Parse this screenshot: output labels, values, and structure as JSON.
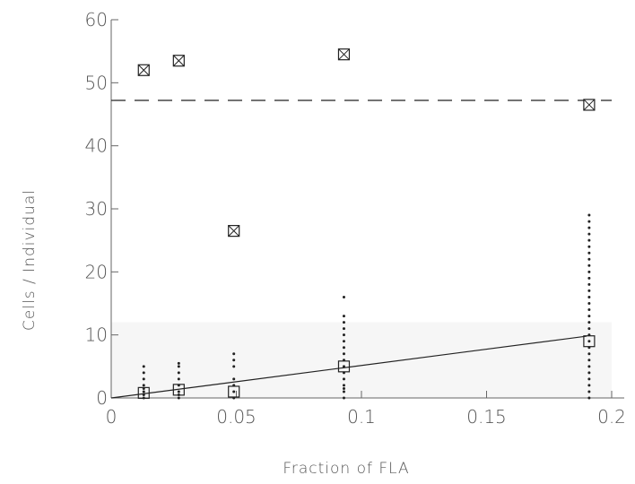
{
  "chart_data": {
    "type": "scatter",
    "title": "",
    "xlabel": "Fraction of FLA",
    "ylabel": "Cells / Individual",
    "xlim": [
      0,
      0.2
    ],
    "ylim": [
      0,
      60
    ],
    "xticks": [
      {
        "value": 0,
        "label": "0"
      },
      {
        "value": 0.05,
        "label": "0.05"
      },
      {
        "value": 0.1,
        "label": "0.1"
      },
      {
        "value": 0.15,
        "label": "0.15"
      },
      {
        "value": 0.2,
        "label": "0.2"
      }
    ],
    "yticks": [
      {
        "value": 0,
        "label": "0"
      },
      {
        "value": 10,
        "label": "10"
      },
      {
        "value": 20,
        "label": "20"
      },
      {
        "value": 30,
        "label": "30"
      },
      {
        "value": 40,
        "label": "40"
      },
      {
        "value": 50,
        "label": "50"
      },
      {
        "value": 60,
        "label": "60"
      }
    ],
    "grid": false,
    "series": [
      {
        "marker": "crossed-square",
        "x": [
          0.013,
          0.027,
          0.049,
          0.093,
          0.191
        ],
        "y": [
          52,
          53.5,
          26.5,
          54.5,
          46.5
        ]
      },
      {
        "marker": "open-square",
        "x": [
          0.013,
          0.027,
          0.049,
          0.093,
          0.191
        ],
        "y": [
          0.8,
          1.3,
          1.0,
          5.0,
          9.0
        ]
      },
      {
        "marker": "dot",
        "x": [
          0.013,
          0.013,
          0.013,
          0.013,
          0.013,
          0.013,
          0.013,
          0.013,
          0.027,
          0.027,
          0.027,
          0.027,
          0.027,
          0.027,
          0.027,
          0.027,
          0.049,
          0.049,
          0.049,
          0.049,
          0.049,
          0.049,
          0.049,
          0.093,
          0.093,
          0.093,
          0.093,
          0.093,
          0.093,
          0.093,
          0.093,
          0.093,
          0.093,
          0.093,
          0.093,
          0.093,
          0.093,
          0.093,
          0.093,
          0.191,
          0.191,
          0.191,
          0.191,
          0.191,
          0.191,
          0.191,
          0.191,
          0.191,
          0.191,
          0.191,
          0.191,
          0.191,
          0.191,
          0.191,
          0.191,
          0.191,
          0.191,
          0.191,
          0.191,
          0.191,
          0.191,
          0.191,
          0.191,
          0.191,
          0.191,
          0.191,
          0.191,
          0.191,
          0.191
        ],
        "y": [
          0,
          0.5,
          1,
          1.5,
          2,
          3,
          4,
          5,
          0,
          0.5,
          1,
          2,
          3,
          4,
          5,
          5.5,
          0,
          1,
          2,
          3,
          5,
          6,
          7,
          0,
          1,
          1.5,
          2,
          3,
          4,
          5,
          6,
          7,
          8,
          9,
          10,
          11,
          12,
          13,
          16,
          0,
          1,
          2,
          3,
          4,
          5,
          6,
          7,
          8,
          9,
          10,
          11,
          12,
          13,
          14,
          15,
          16,
          17,
          18,
          19,
          20,
          21,
          22,
          23,
          24,
          25,
          26,
          27,
          28,
          29
        ]
      }
    ],
    "lines": [
      {
        "style": "dashed",
        "x": [
          0,
          0.2
        ],
        "y": [
          47.2,
          47.2
        ]
      },
      {
        "style": "solid",
        "x": [
          0,
          0.19
        ],
        "y": [
          0,
          9.8
        ]
      }
    ]
  }
}
